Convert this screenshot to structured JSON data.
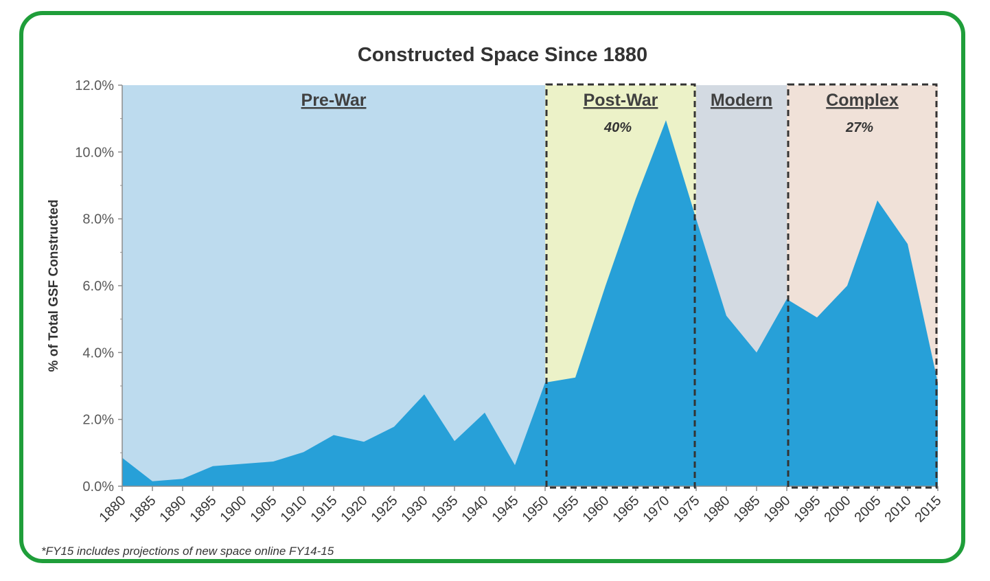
{
  "chart_data": {
    "type": "area",
    "title": "Constructed Space Since 1880",
    "ylabel": "% of Total GSF Constructed",
    "xlabel": "",
    "ylim": [
      0,
      12
    ],
    "ytick_labels": [
      "0.0%",
      "2.0%",
      "4.0%",
      "6.0%",
      "8.0%",
      "10.0%",
      "12.0%"
    ],
    "x": [
      1880,
      1885,
      1890,
      1895,
      1900,
      1905,
      1910,
      1915,
      1920,
      1925,
      1930,
      1935,
      1940,
      1945,
      1950,
      1955,
      1960,
      1965,
      1970,
      1975,
      1980,
      1985,
      1990,
      1995,
      2000,
      2005,
      2010,
      2015
    ],
    "x_labels": [
      "1880",
      "1885",
      "1890",
      "1895",
      "1900",
      "1905",
      "1910",
      "1915",
      "1920",
      "1925",
      "1930",
      "1935",
      "1940",
      "1945",
      "1950",
      "1955",
      "1960",
      "1965",
      "1970",
      "1975",
      "1980",
      "1985",
      "1990",
      "1995",
      "2000",
      "2005",
      "2010",
      "2015"
    ],
    "values": [
      0.85,
      0.15,
      0.22,
      0.6,
      0.67,
      0.74,
      1.02,
      1.53,
      1.33,
      1.78,
      2.75,
      1.35,
      2.2,
      0.63,
      3.1,
      3.25,
      6.0,
      8.6,
      10.95,
      8.0,
      5.1,
      4.0,
      5.6,
      5.05,
      6.0,
      8.55,
      7.25,
      3.1
    ],
    "color": "#27a0d8",
    "regions": [
      {
        "name": "Pre-War",
        "start": 1880,
        "end": 1950,
        "color": "#bddbee",
        "percent": "",
        "dashed": false
      },
      {
        "name": "Post-War",
        "start": 1950,
        "end": 1975,
        "color": "#ecf2c8",
        "percent": "40%",
        "dashed": true
      },
      {
        "name": "Modern",
        "start": 1975,
        "end": 1990,
        "color": "#d3dae2",
        "percent": "",
        "dashed": false
      },
      {
        "name": "Complex",
        "start": 1990,
        "end": 2015,
        "color": "#f0e1d8",
        "percent": "27%",
        "dashed": true
      }
    ],
    "footnote": "*FY15 includes projections of new space online FY14-15"
  },
  "colors": {
    "frame_border": "#1f9e3a",
    "area_fill": "#27a0d8"
  }
}
